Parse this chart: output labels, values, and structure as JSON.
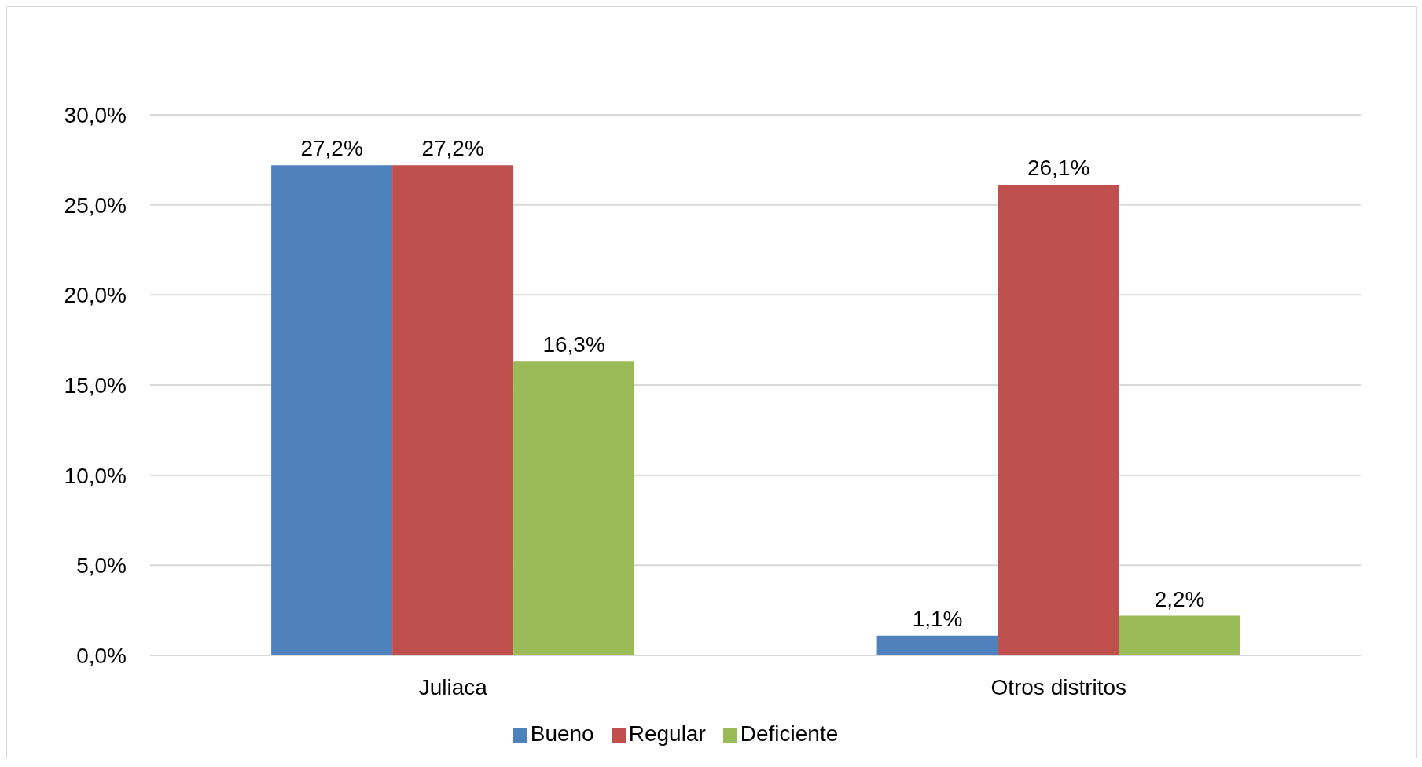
{
  "chart_data": {
    "type": "bar",
    "categories": [
      "Juliaca",
      "Otros distritos"
    ],
    "series": [
      {
        "name": "Bueno",
        "color": "#4f81bd",
        "values": [
          27.2,
          1.1
        ],
        "value_labels": [
          "27,2%",
          "1,1%"
        ]
      },
      {
        "name": "Regular",
        "color": "#c0504d",
        "values": [
          27.2,
          26.1
        ],
        "value_labels": [
          "27,2%",
          "26,1%"
        ]
      },
      {
        "name": "Deficiente",
        "color": "#9bbb59",
        "values": [
          16.3,
          2.2
        ],
        "value_labels": [
          "16,3%",
          "2,2%"
        ]
      }
    ],
    "ylim": [
      0,
      30
    ],
    "yticks": [
      {
        "value": 0,
        "label": "0,0%"
      },
      {
        "value": 5,
        "label": "5,0%"
      },
      {
        "value": 10,
        "label": "10,0%"
      },
      {
        "value": 15,
        "label": "15,0%"
      },
      {
        "value": 20,
        "label": "20,0%"
      },
      {
        "value": 25,
        "label": "25,0%"
      },
      {
        "value": 30,
        "label": "30,0%"
      }
    ],
    "grid": "y",
    "legend": "bottom"
  }
}
